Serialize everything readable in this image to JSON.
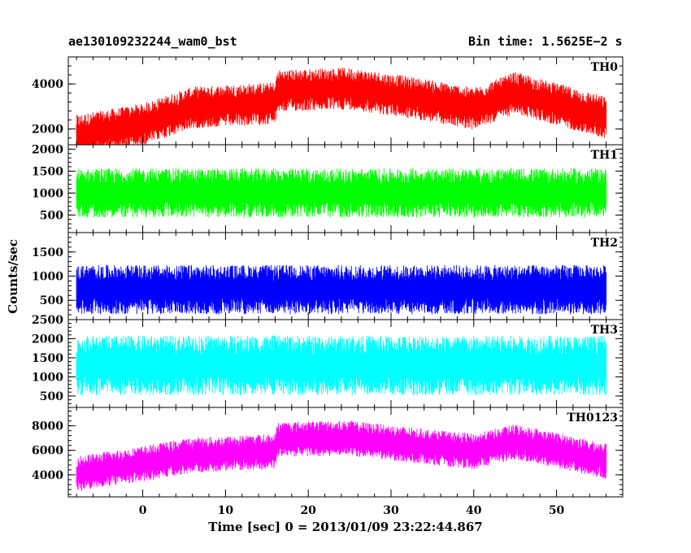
{
  "header": {
    "title_left": "ae130109232244_wam0_bst",
    "title_right": "Bin time: 1.5625E−2 s"
  },
  "chart_data": {
    "type": "line",
    "xlabel": "Time [sec] 0 = 2013/01/09 23:22:44.867",
    "ylabel": "Counts/sec",
    "xlim": [
      -9,
      58
    ],
    "x_ticks": [
      0,
      10,
      20,
      30,
      40,
      50
    ],
    "x_data_range": [
      -8,
      56
    ],
    "panels": [
      {
        "name": "TH0",
        "color": "#ff0000",
        "ylim": [
          1300,
          5200
        ],
        "y_ticks": [
          2000,
          4000
        ],
        "trend": [
          [
            -8,
            1700
          ],
          [
            0,
            2200
          ],
          [
            6,
            2950
          ],
          [
            16,
            3150
          ],
          [
            16.3,
            3700
          ],
          [
            25,
            3800
          ],
          [
            34,
            3300
          ],
          [
            40,
            2900
          ],
          [
            45,
            3600
          ],
          [
            50,
            3100
          ],
          [
            56,
            2500
          ]
        ],
        "noise": 550
      },
      {
        "name": "TH1",
        "color": "#00ff00",
        "ylim": [
          100,
          2100
        ],
        "y_ticks": [
          500,
          1000,
          1500,
          2000
        ],
        "trend": [
          [
            -8,
            1000
          ],
          [
            56,
            1000
          ]
        ],
        "noise": 330
      },
      {
        "name": "TH2",
        "color": "#0000ff",
        "ylim": [
          100,
          1900
        ],
        "y_ticks": [
          500,
          1000,
          1500
        ],
        "trend": [
          [
            -8,
            720
          ],
          [
            56,
            720
          ]
        ],
        "noise": 300
      },
      {
        "name": "TH3",
        "color": "#00ffff",
        "ylim": [
          200,
          2500
        ],
        "y_ticks": [
          500,
          1000,
          1500,
          2000,
          2500
        ],
        "trend": [
          [
            -8,
            1300
          ],
          [
            56,
            1300
          ]
        ],
        "noise": 460
      },
      {
        "name": "TH0123",
        "color": "#ff00ff",
        "ylim": [
          2200,
          9500
        ],
        "y_ticks": [
          4000,
          6000,
          8000
        ],
        "trend": [
          [
            -8,
            4100
          ],
          [
            0,
            4900
          ],
          [
            6,
            5600
          ],
          [
            16,
            5900
          ],
          [
            16.3,
            6900
          ],
          [
            25,
            7000
          ],
          [
            34,
            6300
          ],
          [
            40,
            5900
          ],
          [
            45,
            6700
          ],
          [
            50,
            6000
          ],
          [
            56,
            5100
          ]
        ],
        "noise": 850
      }
    ]
  }
}
